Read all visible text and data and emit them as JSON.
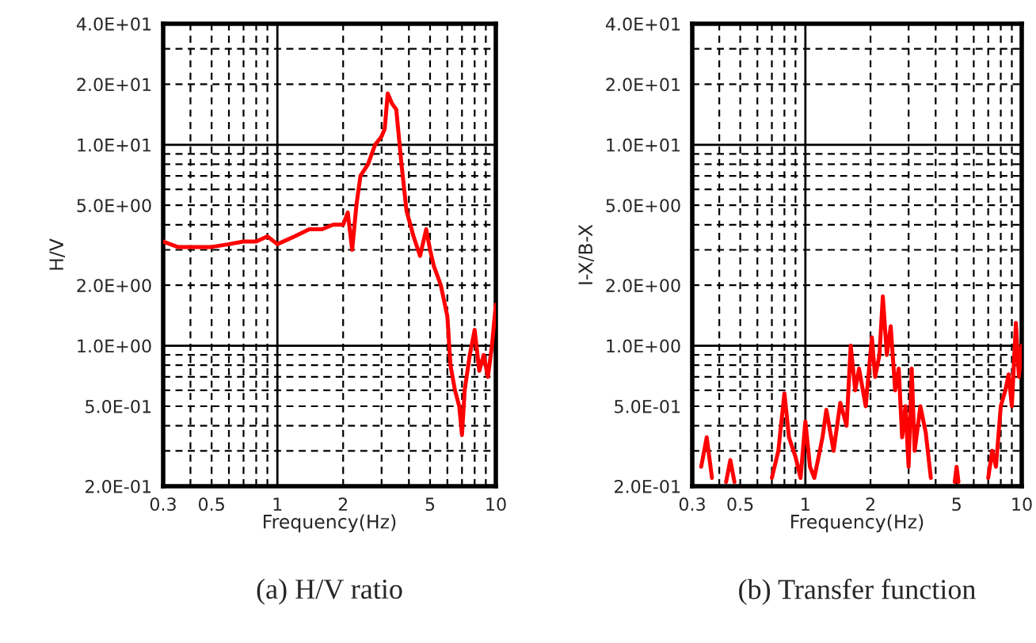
{
  "chart_data": [
    {
      "type": "line",
      "title": "(a) H/V ratio",
      "xlabel": "Frequency(Hz)",
      "ylabel": "H/V",
      "log": "xy",
      "grid": true,
      "line_style": "solid",
      "xlim": [
        0.3,
        10
      ],
      "xticks": [
        0.3,
        0.5,
        1,
        2,
        5,
        10
      ],
      "ylim": [
        0.2,
        40
      ],
      "yticks": [
        {
          "value": 0.2,
          "label": "2.0E-01"
        },
        {
          "value": 0.5,
          "label": "5.0E-01"
        },
        {
          "value": 1,
          "label": "1.0E+00"
        },
        {
          "value": 2,
          "label": "2.0E+00"
        },
        {
          "value": 5,
          "label": "5.0E+00"
        },
        {
          "value": 10,
          "label": "1.0E+01"
        },
        {
          "value": 20,
          "label": "2.0E+01"
        },
        {
          "value": 40,
          "label": "4.0E+01"
        }
      ],
      "series": [
        {
          "color": "#ff0000",
          "x": [
            0.3,
            0.35,
            0.4,
            0.5,
            0.6,
            0.7,
            0.8,
            0.9,
            1.0,
            1.2,
            1.4,
            1.6,
            1.8,
            2.0,
            2.1,
            2.2,
            2.3,
            2.4,
            2.6,
            2.8,
            3.0,
            3.1,
            3.2,
            3.35,
            3.5,
            3.7,
            3.9,
            4.2,
            4.5,
            4.8,
            5.0,
            5.2,
            5.6,
            6.0,
            6.2,
            6.5,
            6.8,
            7.0,
            7.2,
            7.6,
            8.0,
            8.4,
            8.8,
            9.2,
            9.6,
            10
          ],
          "values": [
            3.3,
            3.1,
            3.1,
            3.1,
            3.2,
            3.3,
            3.3,
            3.5,
            3.2,
            3.5,
            3.8,
            3.8,
            4.0,
            4.0,
            4.6,
            3.0,
            5.0,
            7,
            8,
            10,
            11,
            12,
            18,
            16,
            15,
            8,
            4.7,
            3.5,
            2.8,
            3.8,
            3.0,
            2.5,
            2.0,
            1.4,
            0.8,
            0.6,
            0.5,
            0.36,
            0.6,
            0.9,
            1.2,
            0.75,
            0.9,
            0.7,
            1.0,
            1.6
          ]
        }
      ]
    },
    {
      "type": "line",
      "title": "(b) Transfer function",
      "xlabel": "Frequency(Hz)",
      "ylabel": "I-X/B-X",
      "log": "xy",
      "grid": true,
      "line_style": "solid",
      "xlim": [
        0.3,
        10
      ],
      "xticks": [
        0.3,
        0.5,
        1,
        2,
        5,
        10
      ],
      "ylim": [
        0.2,
        40
      ],
      "yticks": [
        {
          "value": 0.2,
          "label": "2.0E-01"
        },
        {
          "value": 0.5,
          "label": "5.0E-01"
        },
        {
          "value": 1,
          "label": "1.0E+00"
        },
        {
          "value": 2,
          "label": "2.0E+00"
        },
        {
          "value": 5,
          "label": "5.0E+00"
        },
        {
          "value": 10,
          "label": "1.0E+01"
        },
        {
          "value": 20,
          "label": "2.0E+01"
        },
        {
          "value": 40,
          "label": "4.0E+01"
        }
      ],
      "series": [
        {
          "color": "#ff0000",
          "x": [
            0.33,
            0.35,
            0.37,
            0.4,
            0.43,
            0.45,
            0.47,
            0.48,
            0.7,
            0.75,
            0.8,
            0.84,
            0.9,
            0.95,
            1.0,
            1.05,
            1.1,
            1.2,
            1.25,
            1.35,
            1.45,
            1.55,
            1.62,
            1.7,
            1.77,
            1.9,
            2.03,
            2.1,
            2.2,
            2.28,
            2.38,
            2.48,
            2.6,
            2.7,
            2.8,
            2.9,
            3.0,
            3.1,
            3.2,
            3.4,
            3.6,
            3.8,
            4.0,
            4.9,
            5.0,
            5.1,
            5.3,
            7.0,
            7.3,
            7.6,
            8.0,
            8.4,
            8.7,
            9.0,
            9.4,
            9.7,
            10
          ],
          "values": [
            0.25,
            0.35,
            0.22,
            null,
            0.21,
            0.27,
            0.21,
            null,
            0.22,
            0.3,
            0.58,
            0.35,
            0.28,
            0.22,
            0.42,
            0.25,
            0.22,
            0.35,
            0.48,
            0.3,
            0.52,
            0.4,
            1.0,
            0.6,
            0.77,
            0.5,
            1.1,
            0.7,
            0.9,
            1.76,
            0.9,
            1.25,
            0.6,
            0.77,
            0.35,
            0.5,
            0.25,
            0.77,
            0.3,
            0.5,
            0.37,
            0.22,
            null,
            0.21,
            0.25,
            0.21,
            null,
            0.22,
            0.3,
            0.25,
            0.5,
            0.6,
            0.72,
            0.5,
            1.3,
            0.7,
            1.0
          ]
        }
      ]
    }
  ]
}
